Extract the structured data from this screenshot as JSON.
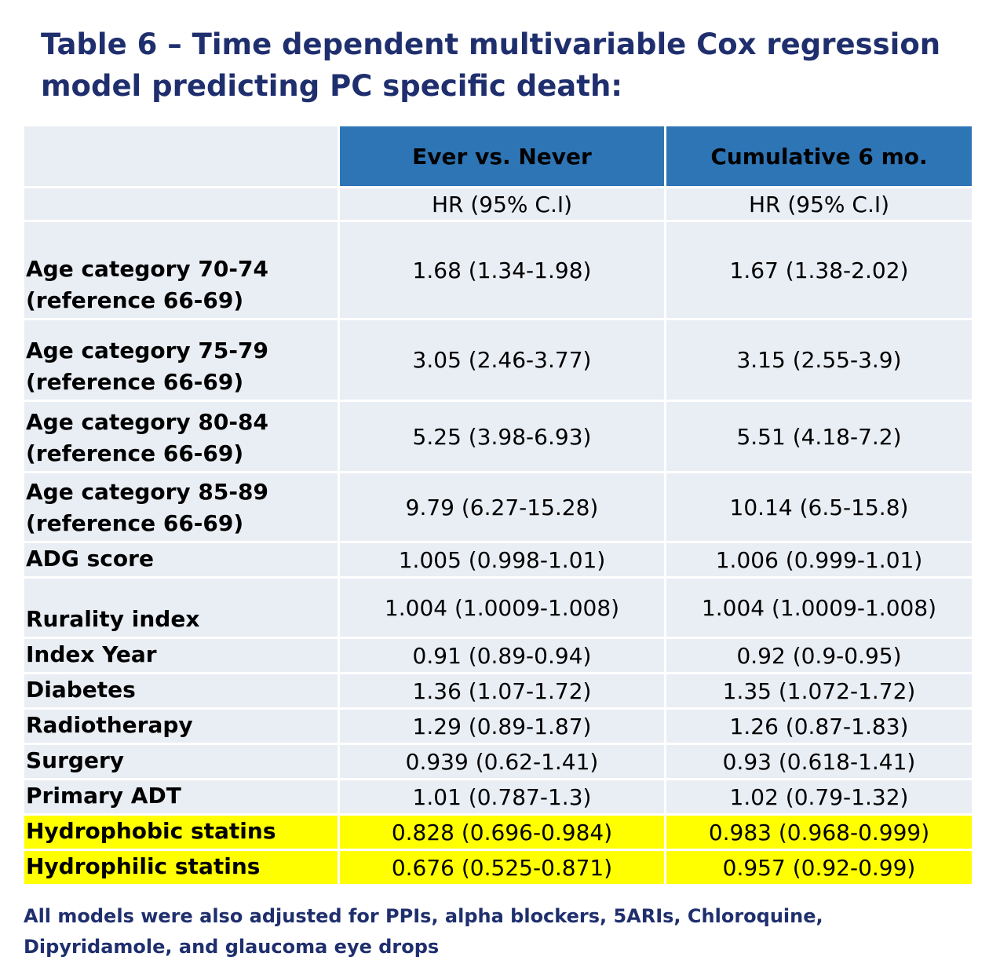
{
  "title": "Table 6 – Time dependent multivariable Cox regression model predicting PC specific death:",
  "table": {
    "columns": [
      "Ever vs. Never",
      "Cumulative 6 mo."
    ],
    "subheaders": [
      "HR (95% C.I)",
      "HR (95% C.I)"
    ],
    "rows": [
      {
        "label": "Age category 70-74\n(reference 66-69)",
        "values": [
          "1.68 (1.34-1.98)",
          "1.67 (1.38-2.02)"
        ]
      },
      {
        "label": "Age category 75-79\n(reference 66-69)",
        "values": [
          "3.05 (2.46-3.77)",
          "3.15 (2.55-3.9)"
        ]
      },
      {
        "label": "Age category 80-84\n(reference 66-69)",
        "values": [
          "5.25 (3.98-6.93)",
          "5.51 (4.18-7.2)"
        ]
      },
      {
        "label": "Age category 85-89\n(reference 66-69)",
        "values": [
          "9.79 (6.27-15.28)",
          "10.14 (6.5-15.8)"
        ]
      },
      {
        "label": "ADG score",
        "values": [
          "1.005 (0.998-1.01)",
          "1.006 (0.999-1.01)"
        ]
      },
      {
        "label": "Rurality index",
        "values": [
          "1.004 (1.0009-1.008)",
          "1.004 (1.0009-1.008)"
        ]
      },
      {
        "label": "Index Year",
        "values": [
          "0.91 (0.89-0.94)",
          "0.92 (0.9-0.95)"
        ]
      },
      {
        "label": "Diabetes",
        "values": [
          "1.36 (1.07-1.72)",
          "1.35 (1.072-1.72)"
        ]
      },
      {
        "label": "Radiotherapy",
        "values": [
          "1.29 (0.89-1.87)",
          "1.26 (0.87-1.83)"
        ]
      },
      {
        "label": "Surgery",
        "values": [
          "0.939 (0.62-1.41)",
          "0.93 (0.618-1.41)"
        ]
      },
      {
        "label": "Primary ADT",
        "values": [
          "1.01 (0.787-1.3)",
          "1.02 (0.79-1.32)"
        ]
      },
      {
        "label": "Hydrophobic statins",
        "values": [
          "0.828 (0.696-0.984)",
          "0.983 (0.968-0.999)"
        ],
        "highlight": true
      },
      {
        "label": "Hydrophilic statins",
        "values": [
          "0.676 (0.525-0.871)",
          "0.957 (0.92-0.99)"
        ],
        "highlight": true
      }
    ]
  },
  "note": "All models were also adjusted for PPIs, alpha blockers, 5ARIs, Chloroquine, Dipyridamole, and glaucoma eye drops"
}
